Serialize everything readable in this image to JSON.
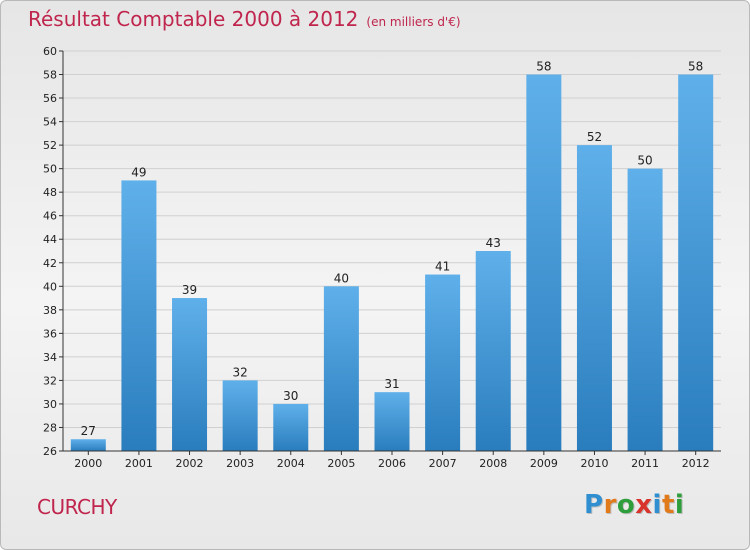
{
  "page": {
    "title": "Résultat Comptable 2000 à 2012",
    "subtitle": "(en milliers d'€)",
    "commune": "CURCHY",
    "logo": {
      "letters": [
        "P",
        "r",
        "o",
        "x",
        "i",
        "t",
        "i"
      ],
      "colors": [
        "#2f8fd0",
        "#e07a1b",
        "#2e9e3c",
        "#d9342c",
        "#2f8fd0",
        "#e07a1b",
        "#2e9e3c"
      ]
    },
    "colors": {
      "title": "#c0254d",
      "bar_top": "#5fb0ea",
      "bar_bottom": "#2a7dbd"
    }
  },
  "chart_data": {
    "type": "bar",
    "title": "Résultat Comptable 2000 à 2012",
    "subtitle": "(en milliers d'€)",
    "categories": [
      "2000",
      "2001",
      "2002",
      "2003",
      "2004",
      "2005",
      "2006",
      "2007",
      "2008",
      "2009",
      "2010",
      "2011",
      "2012"
    ],
    "values": [
      27,
      49,
      39,
      32,
      30,
      40,
      31,
      41,
      43,
      58,
      52,
      50,
      58
    ],
    "ylim": [
      26,
      60
    ],
    "yticks": [
      26,
      28,
      30,
      32,
      34,
      36,
      38,
      40,
      42,
      44,
      46,
      48,
      50,
      52,
      54,
      56,
      58,
      60
    ],
    "grid": true,
    "xlabel": "",
    "ylabel": ""
  }
}
